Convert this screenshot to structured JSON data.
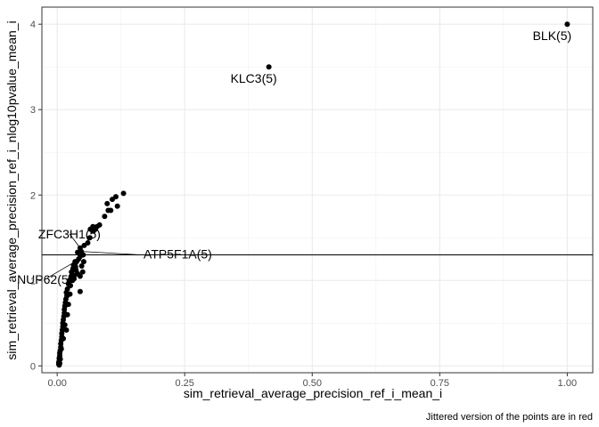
{
  "chart_data": {
    "type": "scatter",
    "xlabel": "sim_retrieval_average_precision_ref_i_mean_i",
    "ylabel": "sim_retrieval_average_precision_ref_i_nlog10pvalue_mean_i",
    "caption": "Jittered version of the points are in red",
    "xlim": [
      -0.03,
      1.05
    ],
    "ylim": [
      -0.08,
      4.2
    ],
    "x_ticks": [
      0.0,
      0.25,
      0.5,
      0.75,
      1.0
    ],
    "x_tick_labels": [
      "0.00",
      "0.25",
      "0.50",
      "0.75",
      "1.00"
    ],
    "y_ticks": [
      0,
      1,
      2,
      3,
      4
    ],
    "y_tick_labels": [
      "0",
      "1",
      "2",
      "3",
      "4"
    ],
    "grid": true,
    "hline": 1.3,
    "labeled_points": [
      {
        "label": "BLK(5)",
        "x": 1.0,
        "y": 4.0
      },
      {
        "label": "KLC3(5)",
        "x": 0.415,
        "y": 3.5
      },
      {
        "label": "ZFC3H1(5)",
        "x": 0.045,
        "y": 1.38
      },
      {
        "label": "ATP5F1A(5)",
        "x": 0.047,
        "y": 1.34
      },
      {
        "label": "NUP62(5)",
        "x": 0.035,
        "y": 1.22
      }
    ],
    "points": [
      [
        1.0,
        4.0
      ],
      [
        0.415,
        3.5
      ],
      [
        0.13,
        2.02
      ],
      [
        0.115,
        1.98
      ],
      [
        0.108,
        1.95
      ],
      [
        0.098,
        1.9
      ],
      [
        0.118,
        1.87
      ],
      [
        0.1,
        1.82
      ],
      [
        0.105,
        1.82
      ],
      [
        0.093,
        1.75
      ],
      [
        0.083,
        1.65
      ],
      [
        0.07,
        1.63
      ],
      [
        0.075,
        1.6
      ],
      [
        0.078,
        1.63
      ],
      [
        0.071,
        1.58
      ],
      [
        0.064,
        1.5
      ],
      [
        0.065,
        1.6
      ],
      [
        0.06,
        1.44
      ],
      [
        0.053,
        1.41
      ],
      [
        0.045,
        1.38
      ],
      [
        0.04,
        1.33
      ],
      [
        0.047,
        1.34
      ],
      [
        0.051,
        1.3
      ],
      [
        0.045,
        1.28
      ],
      [
        0.042,
        1.25
      ],
      [
        0.038,
        1.22
      ],
      [
        0.035,
        1.2
      ],
      [
        0.035,
        1.22
      ],
      [
        0.032,
        1.18
      ],
      [
        0.036,
        1.16
      ],
      [
        0.031,
        1.14
      ],
      [
        0.048,
        1.17
      ],
      [
        0.052,
        1.22
      ],
      [
        0.05,
        1.1
      ],
      [
        0.045,
        1.05
      ],
      [
        0.04,
        1.08
      ],
      [
        0.029,
        1.07
      ],
      [
        0.027,
        1.04
      ],
      [
        0.024,
        1.0
      ],
      [
        0.022,
        0.96
      ],
      [
        0.028,
        1.1
      ],
      [
        0.033,
        1.02
      ],
      [
        0.037,
        1.12
      ],
      [
        0.045,
        0.87
      ],
      [
        0.02,
        0.9
      ],
      [
        0.018,
        0.86
      ],
      [
        0.019,
        0.82
      ],
      [
        0.017,
        0.78
      ],
      [
        0.016,
        0.74
      ],
      [
        0.015,
        0.7
      ],
      [
        0.014,
        0.66
      ],
      [
        0.014,
        0.62
      ],
      [
        0.013,
        0.58
      ],
      [
        0.012,
        0.54
      ],
      [
        0.011,
        0.5
      ],
      [
        0.011,
        0.46
      ],
      [
        0.018,
        0.42
      ],
      [
        0.01,
        0.42
      ],
      [
        0.009,
        0.38
      ],
      [
        0.009,
        0.34
      ],
      [
        0.008,
        0.3
      ],
      [
        0.007,
        0.26
      ],
      [
        0.007,
        0.22
      ],
      [
        0.006,
        0.18
      ],
      [
        0.005,
        0.15
      ],
      [
        0.005,
        0.12
      ],
      [
        0.004,
        0.09
      ],
      [
        0.004,
        0.06
      ],
      [
        0.003,
        0.04
      ],
      [
        0.003,
        0.02
      ],
      [
        0.004,
        0.01
      ],
      [
        0.005,
        0.03
      ],
      [
        0.006,
        0.08
      ],
      [
        0.008,
        0.2
      ],
      [
        0.012,
        0.32
      ],
      [
        0.015,
        0.48
      ],
      [
        0.02,
        0.6
      ],
      [
        0.022,
        0.72
      ],
      [
        0.025,
        0.84
      ],
      [
        0.026,
        0.94
      ],
      [
        0.03,
        1.0
      ],
      [
        0.034,
        1.06
      ]
    ]
  }
}
